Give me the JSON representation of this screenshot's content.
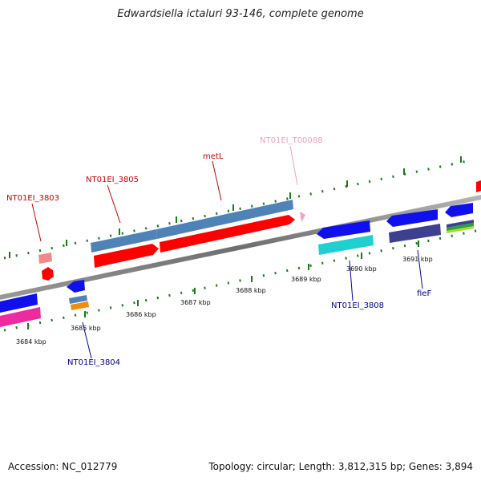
{
  "title": "Edwardsiella ictaluri 93-146, complete genome",
  "footer": {
    "accession": "Accession: NC_012779",
    "topology": "Topology: circular; Length: 3,812,315 bp; Genes: 3,894"
  },
  "ticks_upper": [
    {
      "label": "3684 kbp"
    },
    {
      "label": "3685 kbp"
    },
    {
      "label": "3686 kbp"
    },
    {
      "label": "3687 kbp"
    },
    {
      "label": "3688 kbp"
    },
    {
      "label": "3689 kbp"
    },
    {
      "label": "3690 kbp"
    },
    {
      "label": "3691 kbp"
    }
  ],
  "gene_labels": [
    {
      "text": "NT01EI_3803",
      "color": "#cc0000"
    },
    {
      "text": "NT01EI_3805",
      "color": "#cc0000"
    },
    {
      "text": "metL",
      "color": "#cc0000"
    },
    {
      "text": "NT01EI_T00088",
      "color": "#f4a0c0"
    },
    {
      "text": "NT01EI_3804",
      "color": "#000099"
    },
    {
      "text": "NT01EI_3808",
      "color": "#000099"
    },
    {
      "text": "fieF",
      "color": "#000099"
    }
  ],
  "colors": {
    "backbone": "#808080",
    "tick": "#1a7a1a",
    "red": "#ff0000",
    "steel": "#4f83b8",
    "blue": "#1010ee",
    "cyan": "#20d0d0",
    "magenta": "#ee2aa0",
    "indigo": "#3f3f8f",
    "orange": "#f08c10",
    "pink": "#f4a0c0",
    "salmon": "#f08a8a"
  }
}
